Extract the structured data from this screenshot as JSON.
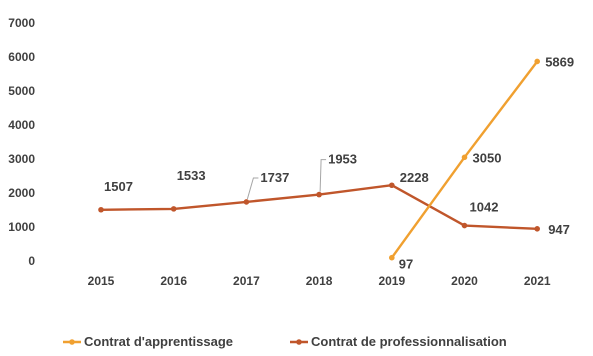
{
  "chart_data": {
    "type": "line",
    "title": "",
    "xlabel": "",
    "ylabel": "",
    "x": [
      "2015",
      "2016",
      "2017",
      "2018",
      "2019",
      "2020",
      "2021"
    ],
    "yticks": [
      "0",
      "1000",
      "2000",
      "3000",
      "4000",
      "5000",
      "6000",
      "7000"
    ],
    "ylim": [
      0,
      7000
    ],
    "grid": false,
    "legend_position": "bottom",
    "series": [
      {
        "name": "Contrat d'apprentissage",
        "color": "#F0A030",
        "x": [
          "2019",
          "2020",
          "2021"
        ],
        "values": [
          97,
          3050,
          5869
        ],
        "labels": [
          "97",
          "3050",
          "5869"
        ]
      },
      {
        "name": "Contrat de professionnalisation",
        "color": "#C0562B",
        "x": [
          "2015",
          "2016",
          "2017",
          "2018",
          "2019",
          "2020",
          "2021"
        ],
        "values": [
          1507,
          1533,
          1737,
          1953,
          2228,
          1042,
          947
        ],
        "labels": [
          "1507",
          "1533",
          "1737",
          "1953",
          "2228",
          "1042",
          "947"
        ]
      }
    ]
  }
}
